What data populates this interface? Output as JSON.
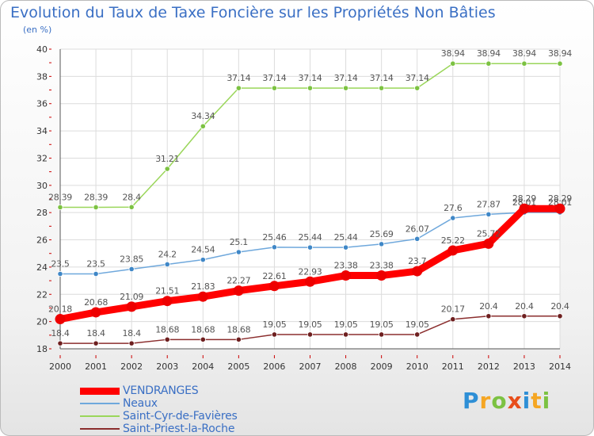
{
  "title": "Evolution du Taux de Taxe Foncière sur les Propriétés Non Bâties",
  "unit_label": "(en %)",
  "brand": {
    "text": "Proxiti",
    "letter_colors": [
      "#2e8fd6",
      "#f5a623",
      "#7cc242",
      "#e84e1b",
      "#2e8fd6",
      "#f5a623",
      "#7cc242"
    ]
  },
  "chart_data": {
    "type": "line",
    "x": [
      "2000",
      "2001",
      "2002",
      "2003",
      "2004",
      "2005",
      "2006",
      "2007",
      "2008",
      "2009",
      "2010",
      "2011",
      "2012",
      "2013",
      "2014"
    ],
    "ylim": [
      18,
      40
    ],
    "yticks": [
      18,
      20,
      22,
      24,
      26,
      28,
      30,
      32,
      34,
      36,
      38,
      40
    ],
    "grid": true,
    "legend_position": "bottom-left",
    "series": [
      {
        "name": "Saint-Cyr-de-Favières",
        "color": "#9ad65a",
        "marker": "#7cc242",
        "values": [
          28.39,
          28.39,
          28.4,
          31.21,
          34.34,
          37.14,
          37.14,
          37.14,
          37.14,
          37.14,
          37.14,
          38.94,
          38.94,
          38.94,
          38.94
        ],
        "labels": [
          "28.39",
          "28.39",
          "28.4",
          "31.21",
          "34.34",
          "37.14",
          "37.14",
          "37.14",
          "37.14",
          "37.14",
          "37.14",
          "38.94",
          "38.94",
          "38.94",
          "38.94"
        ]
      },
      {
        "name": "Neaux",
        "color": "#6fa8dc",
        "marker": "#3f87c7",
        "values": [
          23.5,
          23.5,
          23.85,
          24.2,
          24.54,
          25.1,
          25.46,
          25.44,
          25.44,
          25.69,
          26.07,
          27.6,
          27.87,
          28.01,
          28.01
        ],
        "labels": [
          "23.5",
          "23.5",
          "23.85",
          "24.2",
          "24.54",
          "25.1",
          "25.46",
          "25.44",
          "25.44",
          "25.69",
          "26.07",
          "27.6",
          "27.87",
          "28.01",
          "28.01"
        ]
      },
      {
        "name": "VENDRANGES",
        "color": "#ff0000",
        "marker": "#ee0000",
        "values": [
          20.18,
          20.68,
          21.09,
          21.51,
          21.83,
          22.27,
          22.61,
          22.93,
          23.38,
          23.38,
          23.7,
          25.22,
          25.72,
          28.29,
          28.29
        ],
        "labels": [
          "20.18",
          "20.68",
          "21.09",
          "21.51",
          "21.83",
          "22.27",
          "22.61",
          "22.93",
          "23.38",
          "23.38",
          "23.7",
          "25.22",
          "25.72",
          "28.29",
          "28.29"
        ]
      },
      {
        "name": "Saint-Priest-la-Roche",
        "color": "#8b2e2e",
        "marker": "#6e1f1f",
        "values": [
          18.4,
          18.4,
          18.4,
          18.68,
          18.68,
          18.68,
          19.05,
          19.05,
          19.05,
          19.05,
          19.05,
          20.17,
          20.4,
          20.4,
          20.4
        ],
        "labels": [
          "18.4",
          "18.4",
          "18.4",
          "18.68",
          "18.68",
          "18.68",
          "19.05",
          "19.05",
          "19.05",
          "19.05",
          "19.05",
          "20.17",
          "20.4",
          "20.4",
          "20.4"
        ]
      }
    ],
    "legend_order": [
      "VENDRANGES",
      "Neaux",
      "Saint-Cyr-de-Favières",
      "Saint-Priest-la-Roche"
    ]
  }
}
